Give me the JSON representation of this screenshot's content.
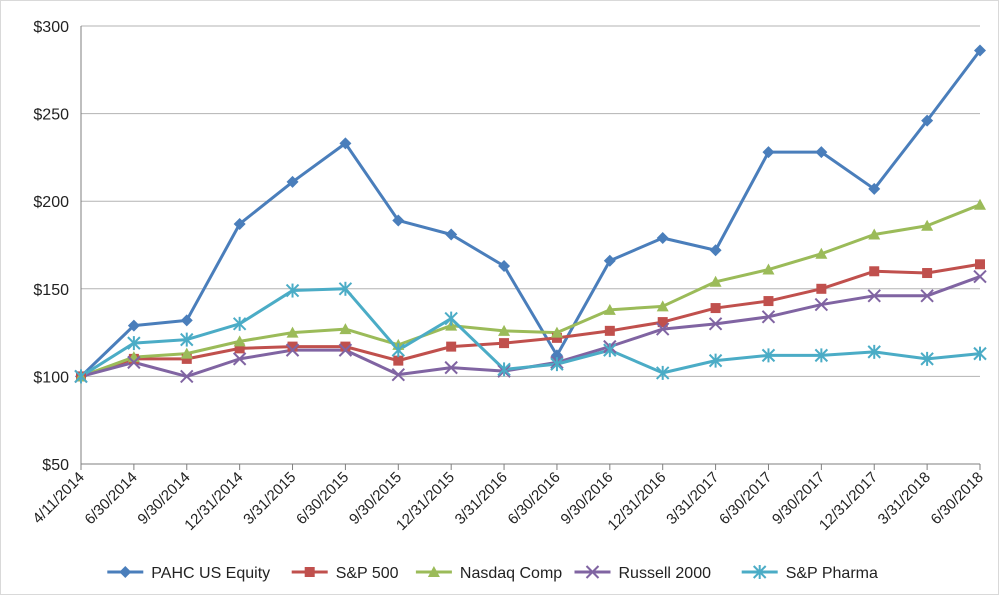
{
  "chart_data": {
    "type": "line",
    "title": "",
    "xlabel": "",
    "ylabel": "",
    "categories": [
      "4/11/2014",
      "6/30/2014",
      "9/30/2014",
      "12/31/2014",
      "3/31/2015",
      "6/30/2015",
      "9/30/2015",
      "12/31/2015",
      "3/31/2016",
      "6/30/2016",
      "9/30/2016",
      "12/31/2016",
      "3/31/2017",
      "6/30/2017",
      "9/30/2017",
      "12/31/2017",
      "3/31/2018",
      "6/30/2018"
    ],
    "ylim": [
      50,
      300
    ],
    "yticks": [
      50,
      100,
      150,
      200,
      250,
      300
    ],
    "ytick_labels": [
      "$50",
      "$100",
      "$150",
      "$200",
      "$250",
      "$300"
    ],
    "grid": "horizontal",
    "legend_position": "bottom",
    "series": [
      {
        "name": "PAHC US Equity",
        "color": "#4a7ebb",
        "marker": "diamond",
        "values": [
          100,
          129,
          132,
          187,
          211,
          233,
          189,
          181,
          163,
          112,
          166,
          179,
          172,
          228,
          228,
          207,
          246,
          286
        ]
      },
      {
        "name": "S&P 500",
        "color": "#c0504d",
        "marker": "square",
        "values": [
          100,
          110,
          110,
          116,
          117,
          117,
          109,
          117,
          119,
          122,
          126,
          131,
          139,
          143,
          150,
          160,
          159,
          164
        ]
      },
      {
        "name": "Nasdaq Comp",
        "color": "#9bbb59",
        "marker": "triangle",
        "values": [
          100,
          111,
          113,
          120,
          125,
          127,
          118,
          129,
          126,
          125,
          138,
          140,
          154,
          161,
          170,
          181,
          186,
          198
        ]
      },
      {
        "name": "Russell 2000",
        "color": "#8064a2",
        "marker": "x",
        "values": [
          100,
          108,
          100,
          110,
          115,
          115,
          101,
          105,
          103,
          108,
          117,
          127,
          130,
          134,
          141,
          146,
          146,
          157
        ]
      },
      {
        "name": "S&P Pharma",
        "color": "#4bacc6",
        "marker": "star",
        "values": [
          100,
          119,
          121,
          130,
          149,
          150,
          115,
          133,
          104,
          107,
          115,
          102,
          109,
          112,
          112,
          114,
          110,
          113
        ]
      }
    ]
  }
}
